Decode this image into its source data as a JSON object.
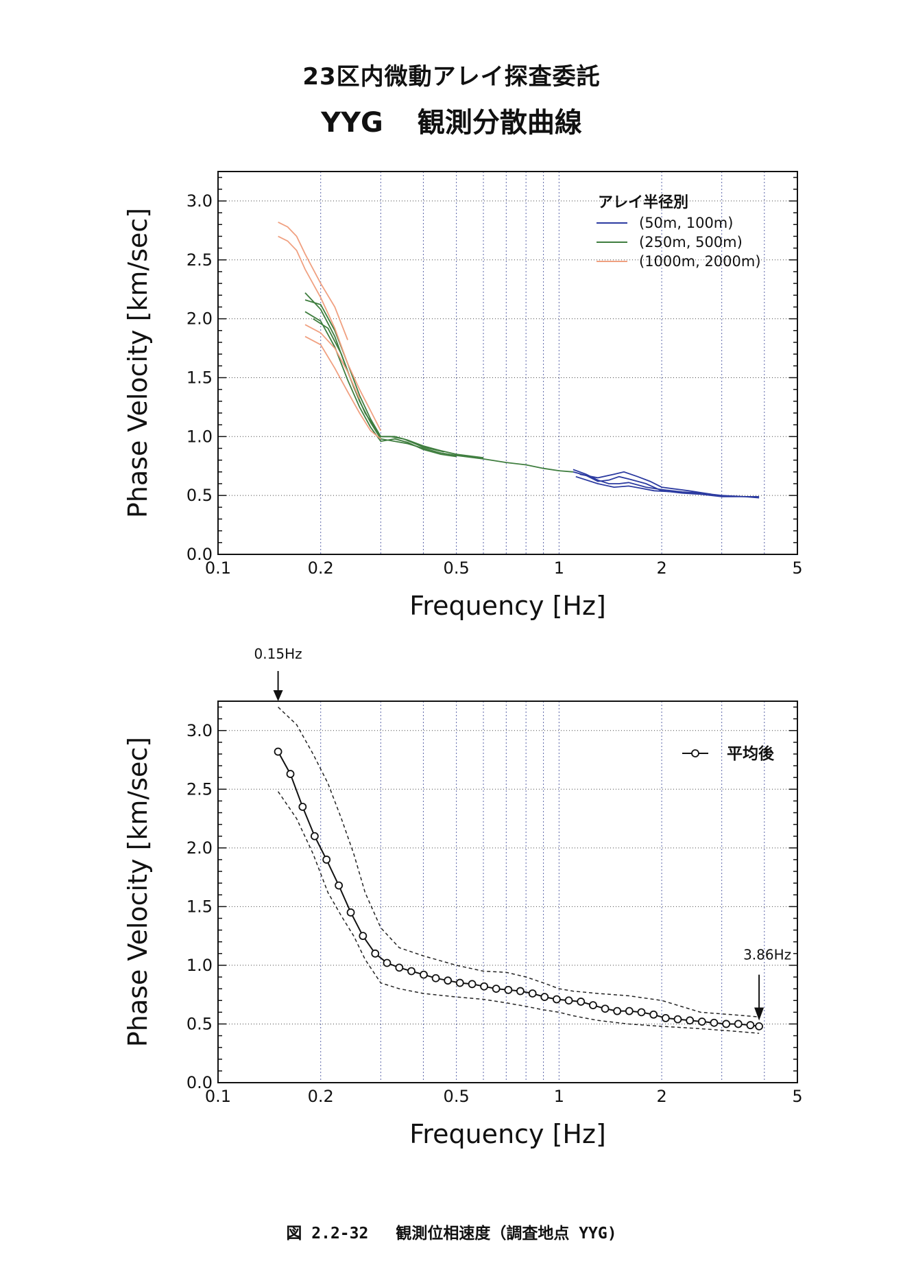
{
  "header": {
    "title_line1": "23区内微動アレイ探査委託",
    "title_site": "YYG",
    "title_main": "観測分散曲線"
  },
  "caption": {
    "figure_number": "図 2.2-32",
    "text": "観測位相速度（調査地点 YYG)"
  },
  "colors": {
    "blue": "#2b3aa0",
    "green": "#3e7d3e",
    "orange": "#f0a080",
    "black": "#111111"
  },
  "chart_data": [
    {
      "type": "line",
      "xlabel": "Frequency [Hz]",
      "ylabel": "Phase Velocity [km/sec]",
      "x_scale": "log",
      "xlim": [
        0.1,
        5
      ],
      "ylim": [
        0.0,
        3.25
      ],
      "x_ticks": [
        "0.1",
        "0.2",
        "0.5",
        "1",
        "2",
        "5"
      ],
      "y_ticks": [
        "0.0",
        "0.5",
        "1.0",
        "1.5",
        "2.0",
        "2.5",
        "3.0"
      ],
      "grid": true,
      "legend_position": "top-right",
      "legend_title": "アレイ半径別",
      "series": [
        {
          "name": "(50m, 100m)",
          "color": "blue",
          "curves": [
            [
              [
                1.1,
                0.72
              ],
              [
                1.2,
                0.68
              ],
              [
                1.3,
                0.63
              ],
              [
                1.4,
                0.6
              ],
              [
                1.5,
                0.6
              ],
              [
                1.6,
                0.61
              ],
              [
                1.7,
                0.59
              ],
              [
                1.8,
                0.57
              ],
              [
                2.0,
                0.55
              ],
              [
                2.3,
                0.53
              ],
              [
                2.6,
                0.52
              ],
              [
                3.0,
                0.5
              ],
              [
                3.5,
                0.49
              ],
              [
                3.86,
                0.48
              ]
            ],
            [
              [
                1.1,
                0.7
              ],
              [
                1.2,
                0.67
              ],
              [
                1.3,
                0.62
              ],
              [
                1.4,
                0.63
              ],
              [
                1.5,
                0.66
              ],
              [
                1.6,
                0.64
              ],
              [
                1.7,
                0.62
              ],
              [
                1.8,
                0.6
              ],
              [
                2.0,
                0.54
              ],
              [
                2.3,
                0.52
              ],
              [
                2.6,
                0.51
              ],
              [
                3.0,
                0.49
              ],
              [
                3.5,
                0.49
              ],
              [
                3.86,
                0.49
              ]
            ],
            [
              [
                1.15,
                0.68
              ],
              [
                1.3,
                0.65
              ],
              [
                1.45,
                0.68
              ],
              [
                1.55,
                0.7
              ],
              [
                1.7,
                0.66
              ],
              [
                1.85,
                0.62
              ],
              [
                2.0,
                0.57
              ],
              [
                2.4,
                0.54
              ],
              [
                2.8,
                0.51
              ]
            ],
            [
              [
                1.12,
                0.66
              ],
              [
                1.3,
                0.6
              ],
              [
                1.45,
                0.57
              ],
              [
                1.6,
                0.58
              ],
              [
                1.75,
                0.56
              ],
              [
                1.9,
                0.54
              ],
              [
                2.2,
                0.53
              ],
              [
                2.6,
                0.52
              ]
            ]
          ]
        },
        {
          "name": "(250m, 500m)",
          "color": "green",
          "curves": [
            [
              [
                0.18,
                2.22
              ],
              [
                0.2,
                2.08
              ],
              [
                0.22,
                1.85
              ],
              [
                0.24,
                1.55
              ],
              [
                0.26,
                1.3
              ],
              [
                0.28,
                1.12
              ],
              [
                0.3,
                0.98
              ],
              [
                0.33,
                0.96
              ],
              [
                0.36,
                0.94
              ],
              [
                0.4,
                0.9
              ],
              [
                0.45,
                0.86
              ],
              [
                0.5,
                0.84
              ],
              [
                0.6,
                0.81
              ],
              [
                0.7,
                0.78
              ],
              [
                0.8,
                0.76
              ],
              [
                0.9,
                0.73
              ],
              [
                1.0,
                0.71
              ],
              [
                1.1,
                0.7
              ]
            ],
            [
              [
                0.18,
                2.16
              ],
              [
                0.2,
                2.12
              ],
              [
                0.22,
                1.9
              ],
              [
                0.24,
                1.62
              ],
              [
                0.26,
                1.35
              ],
              [
                0.28,
                1.15
              ],
              [
                0.3,
                1.0
              ],
              [
                0.33,
                1.0
              ],
              [
                0.36,
                0.97
              ],
              [
                0.4,
                0.92
              ],
              [
                0.45,
                0.88
              ],
              [
                0.5,
                0.85
              ],
              [
                0.6,
                0.82
              ]
            ],
            [
              [
                0.18,
                2.06
              ],
              [
                0.2,
                1.98
              ],
              [
                0.22,
                1.76
              ],
              [
                0.24,
                1.48
              ],
              [
                0.26,
                1.25
              ],
              [
                0.28,
                1.08
              ],
              [
                0.3,
                0.96
              ],
              [
                0.33,
                0.98
              ],
              [
                0.36,
                0.95
              ],
              [
                0.4,
                0.89
              ],
              [
                0.45,
                0.85
              ],
              [
                0.5,
                0.83
              ]
            ],
            [
              [
                0.19,
                2.0
              ],
              [
                0.21,
                1.92
              ],
              [
                0.23,
                1.7
              ],
              [
                0.25,
                1.42
              ],
              [
                0.27,
                1.2
              ],
              [
                0.3,
                1.0
              ],
              [
                0.32,
                1.0
              ],
              [
                0.35,
                0.98
              ],
              [
                0.4,
                0.91
              ],
              [
                0.46,
                0.87
              ]
            ]
          ]
        },
        {
          "name": "(1000m, 2000m)",
          "color": "orange",
          "curves": [
            [
              [
                0.15,
                2.82
              ],
              [
                0.16,
                2.78
              ],
              [
                0.17,
                2.7
              ],
              [
                0.18,
                2.55
              ],
              [
                0.2,
                2.3
              ],
              [
                0.22,
                2.1
              ],
              [
                0.24,
                1.82
              ]
            ],
            [
              [
                0.15,
                2.7
              ],
              [
                0.16,
                2.66
              ],
              [
                0.17,
                2.58
              ],
              [
                0.18,
                2.42
              ],
              [
                0.2,
                2.18
              ],
              [
                0.22,
                1.92
              ],
              [
                0.24,
                1.62
              ],
              [
                0.26,
                1.4
              ],
              [
                0.28,
                1.22
              ],
              [
                0.3,
                1.05
              ]
            ],
            [
              [
                0.18,
                1.85
              ],
              [
                0.2,
                1.78
              ],
              [
                0.22,
                1.58
              ],
              [
                0.24,
                1.38
              ],
              [
                0.26,
                1.2
              ],
              [
                0.28,
                1.05
              ],
              [
                0.3,
                0.98
              ]
            ],
            [
              [
                0.18,
                1.95
              ],
              [
                0.2,
                1.88
              ],
              [
                0.22,
                1.75
              ],
              [
                0.24,
                1.55
              ],
              [
                0.26,
                1.32
              ]
            ]
          ]
        }
      ]
    },
    {
      "type": "line",
      "xlabel": "Frequency [Hz]",
      "ylabel": "Phase Velocity [km/sec]",
      "x_scale": "log",
      "xlim": [
        0.1,
        5
      ],
      "ylim": [
        0.0,
        3.25
      ],
      "x_ticks": [
        "0.1",
        "0.2",
        "0.5",
        "1",
        "2",
        "5"
      ],
      "y_ticks": [
        "0.0",
        "0.5",
        "1.0",
        "1.5",
        "2.0",
        "2.5",
        "3.0"
      ],
      "grid": true,
      "legend_position": "top-right",
      "annotations": [
        {
          "text": "0.15Hz",
          "x": 0.15,
          "arrow": "down",
          "placement": "above"
        },
        {
          "text": "3.86Hz",
          "x": 3.86,
          "arrow": "down",
          "placement": "right-inside"
        }
      ],
      "series": [
        {
          "name": "平均後",
          "style": "solid-with-open-circles",
          "x": [
            0.15,
            0.163,
            0.177,
            0.192,
            0.208,
            0.226,
            0.245,
            0.266,
            0.289,
            0.313,
            0.34,
            0.369,
            0.401,
            0.435,
            0.472,
            0.512,
            0.556,
            0.603,
            0.654,
            0.71,
            0.77,
            0.836,
            0.907,
            0.984,
            1.068,
            1.159,
            1.258,
            1.365,
            1.481,
            1.607,
            1.744,
            1.893,
            2.054,
            2.229,
            2.419,
            2.625,
            2.848,
            3.091,
            3.354,
            3.64,
            3.86
          ],
          "y": [
            2.82,
            2.63,
            2.35,
            2.1,
            1.9,
            1.68,
            1.45,
            1.25,
            1.1,
            1.02,
            0.98,
            0.95,
            0.92,
            0.89,
            0.87,
            0.85,
            0.84,
            0.82,
            0.8,
            0.79,
            0.78,
            0.76,
            0.73,
            0.71,
            0.7,
            0.69,
            0.66,
            0.63,
            0.61,
            0.61,
            0.6,
            0.58,
            0.55,
            0.54,
            0.53,
            0.52,
            0.51,
            0.5,
            0.5,
            0.49,
            0.48
          ]
        },
        {
          "name": "",
          "style": "dashed",
          "role": "upper-bound",
          "x": [
            0.15,
            0.17,
            0.19,
            0.21,
            0.23,
            0.25,
            0.27,
            0.3,
            0.34,
            0.4,
            0.5,
            0.6,
            0.7,
            0.8,
            0.9,
            1.0,
            1.1,
            1.3,
            1.6,
            2.0,
            2.6,
            3.2,
            3.86
          ],
          "y": [
            3.2,
            3.05,
            2.8,
            2.55,
            2.25,
            1.95,
            1.62,
            1.32,
            1.15,
            1.08,
            1.0,
            0.95,
            0.94,
            0.9,
            0.85,
            0.8,
            0.78,
            0.76,
            0.74,
            0.7,
            0.6,
            0.58,
            0.56
          ]
        },
        {
          "name": "",
          "style": "dashed",
          "role": "lower-bound",
          "x": [
            0.15,
            0.17,
            0.19,
            0.21,
            0.23,
            0.25,
            0.27,
            0.3,
            0.34,
            0.4,
            0.5,
            0.6,
            0.7,
            0.8,
            0.9,
            1.0,
            1.1,
            1.3,
            1.6,
            2.0,
            2.6,
            3.2,
            3.86
          ],
          "y": [
            2.48,
            2.25,
            1.95,
            1.62,
            1.42,
            1.25,
            1.05,
            0.85,
            0.8,
            0.76,
            0.73,
            0.71,
            0.68,
            0.65,
            0.62,
            0.6,
            0.57,
            0.53,
            0.5,
            0.48,
            0.46,
            0.44,
            0.42
          ]
        }
      ]
    }
  ]
}
